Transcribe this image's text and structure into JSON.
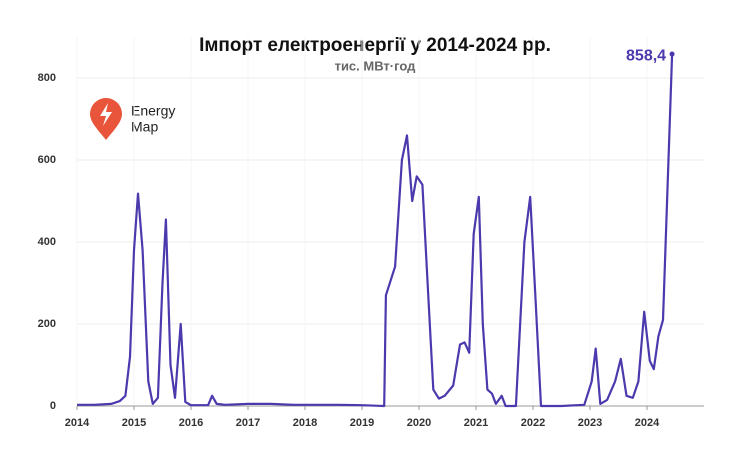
{
  "chart_data": {
    "type": "line",
    "title": "Імпорт електроенергії у 2014-2024 рр.",
    "subtitle": "тис. МВт·год",
    "logo": [
      "Energy",
      "Map"
    ],
    "x": [
      2014.0,
      2014.3,
      2014.6,
      2014.75,
      2014.85,
      2014.93,
      2015.0,
      2015.07,
      2015.15,
      2015.25,
      2015.33,
      2015.42,
      2015.5,
      2015.56,
      2015.64,
      2015.72,
      2015.82,
      2015.9,
      2016.0,
      2016.3,
      2016.37,
      2016.45,
      2016.6,
      2017.0,
      2017.4,
      2017.8,
      2018.2,
      2018.6,
      2019.0,
      2019.39,
      2019.42,
      2019.58,
      2019.7,
      2019.79,
      2019.88,
      2019.96,
      2020.06,
      2020.15,
      2020.25,
      2020.35,
      2020.45,
      2020.6,
      2020.72,
      2020.8,
      2020.88,
      2020.96,
      2021.05,
      2021.12,
      2021.2,
      2021.28,
      2021.35,
      2021.45,
      2021.52,
      2021.7,
      2021.85,
      2021.95,
      2022.03,
      2022.14,
      2022.5,
      2022.9,
      2023.03,
      2023.1,
      2023.18,
      2023.3,
      2023.44,
      2023.54,
      2023.64,
      2023.75,
      2023.85,
      2023.95,
      2024.05,
      2024.12,
      2024.2,
      2024.28,
      2024.44
    ],
    "series": [
      {
        "name": "Імпорт",
        "color": "#4a3aad",
        "values": [
          3,
          3,
          5,
          12,
          25,
          120,
          380,
          518,
          380,
          60,
          5,
          20,
          300,
          455,
          100,
          20,
          200,
          10,
          2,
          2,
          25,
          5,
          3,
          5,
          5,
          3,
          3,
          3,
          2,
          0,
          270,
          340,
          600,
          660,
          500,
          560,
          540,
          300,
          40,
          18,
          25,
          50,
          150,
          155,
          130,
          420,
          510,
          200,
          40,
          30,
          5,
          25,
          0,
          0,
          400,
          510,
          300,
          0,
          0,
          3,
          60,
          140,
          5,
          15,
          60,
          115,
          25,
          20,
          60,
          230,
          110,
          90,
          170,
          210,
          858.4
        ],
        "value_labels": [
          null,
          null,
          null,
          null,
          null,
          null,
          null,
          null,
          null,
          null,
          null,
          null,
          null,
          null,
          null,
          null,
          null,
          null,
          null,
          null,
          null,
          null,
          null,
          null,
          null,
          null,
          null,
          null,
          null,
          null,
          null,
          null,
          null,
          null,
          null,
          null,
          null,
          null,
          null,
          null,
          null,
          null,
          null,
          null,
          null,
          null,
          null,
          null,
          null,
          null,
          null,
          null,
          null,
          null,
          null,
          null,
          null,
          null,
          null,
          null,
          null,
          null,
          null,
          null,
          null,
          null,
          null,
          null,
          null,
          null,
          null,
          null,
          null,
          null,
          "858,4"
        ]
      }
    ],
    "xlim": [
      2014,
      2025
    ],
    "xticks": [
      2014,
      2015,
      2016,
      2017,
      2018,
      2019,
      2020,
      2021,
      2022,
      2023,
      2024
    ],
    "ylim": [
      0,
      900
    ],
    "yticks": [
      0,
      200,
      400,
      600,
      800
    ],
    "grid": true
  }
}
